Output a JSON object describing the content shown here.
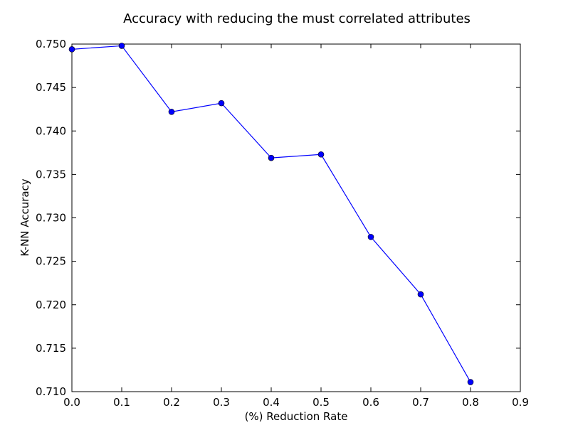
{
  "chart_data": {
    "type": "line",
    "title": "Accuracy with reducing the must correlated attributes",
    "xlabel": "(%) Reduction Rate",
    "ylabel": "K-NN Accuracy",
    "xlim": [
      0.0,
      0.9
    ],
    "ylim": [
      0.71,
      0.75
    ],
    "x_ticks": [
      0.0,
      0.1,
      0.2,
      0.3,
      0.4,
      0.5,
      0.6,
      0.7,
      0.8,
      0.9
    ],
    "x_tick_labels": [
      "0.0",
      "0.1",
      "0.2",
      "0.3",
      "0.4",
      "0.5",
      "0.6",
      "0.7",
      "0.8",
      "0.9"
    ],
    "y_ticks": [
      0.71,
      0.715,
      0.72,
      0.725,
      0.73,
      0.735,
      0.74,
      0.745,
      0.75
    ],
    "y_tick_labels": [
      "0.710",
      "0.715",
      "0.720",
      "0.725",
      "0.730",
      "0.735",
      "0.740",
      "0.745",
      "0.750"
    ],
    "grid": false,
    "legend": "none",
    "line_color": "#0000ff",
    "series": [
      {
        "x": [
          0.0,
          0.1,
          0.2,
          0.3,
          0.4,
          0.5,
          0.6,
          0.7,
          0.8
        ],
        "y": [
          0.7494,
          0.7498,
          0.7422,
          0.7432,
          0.7369,
          0.7373,
          0.7278,
          0.7212,
          0.7111
        ]
      }
    ]
  }
}
